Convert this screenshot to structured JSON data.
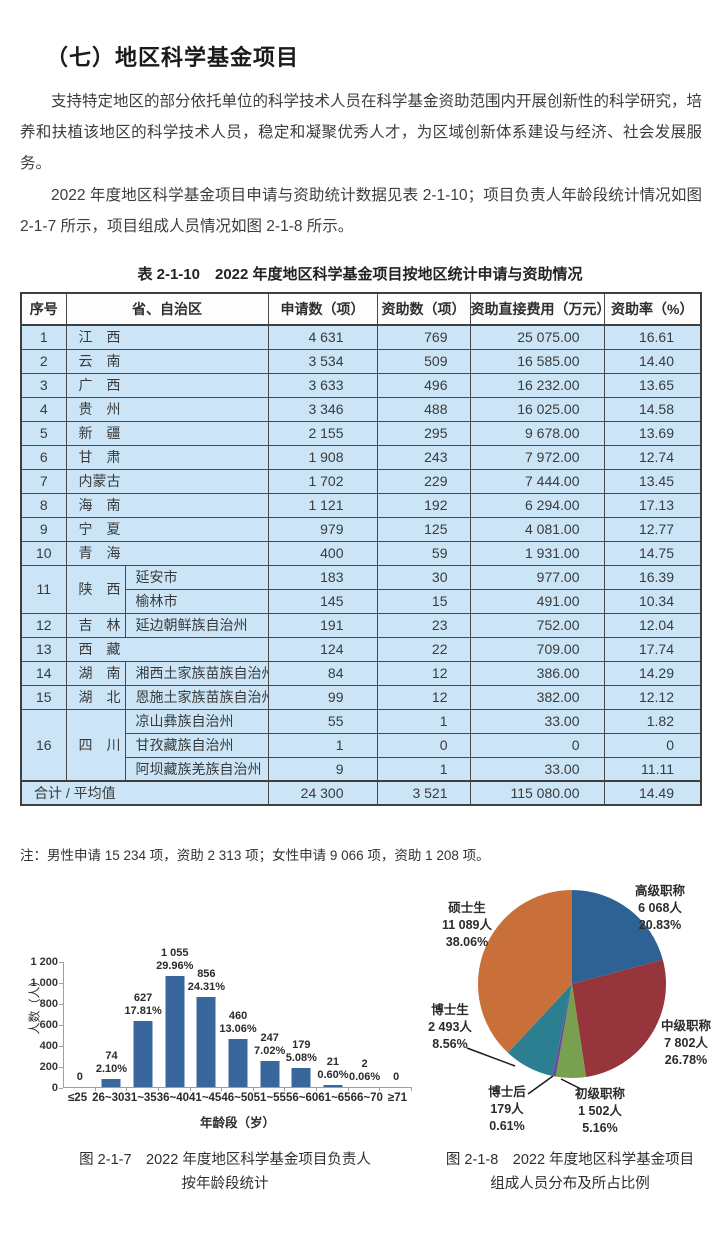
{
  "page": {
    "heading": "（七）地区科学基金项目",
    "paragraph1": "支持特定地区的部分依托单位的科学技术人员在科学基金资助范围内开展创新性的科学研究，培养和扶植该地区的科学技术人员，稳定和凝聚优秀人才，为区域创新体系建设与经济、社会发展服务。",
    "paragraph2": "2022 年度地区科学基金项目申请与资助统计数据见表 2-1-10；项目负责人年龄段统计情况如图 2-1-7 所示，项目组成人员情况如图 2-1-8 所示。",
    "note": "注：男性申请 15 234 项，资助 2 313 项；女性申请 9 066 项，资助 1 208 项。"
  },
  "table": {
    "title": "表 2-1-10　2022 年度地区科学基金项目按地区统计申请与资助情况",
    "headers": [
      "序号",
      "省、自治区",
      "申请数（项）",
      "资助数（项）",
      "资助直接费用（万元）",
      "资助率（%）"
    ],
    "rows": [
      {
        "no": "1",
        "province": "江　西",
        "values": [
          "4 631",
          "769",
          "25 075.00",
          "16.61"
        ]
      },
      {
        "no": "2",
        "province": "云　南",
        "values": [
          "3 534",
          "509",
          "16 585.00",
          "14.40"
        ]
      },
      {
        "no": "3",
        "province": "广　西",
        "values": [
          "3 633",
          "496",
          "16 232.00",
          "13.65"
        ]
      },
      {
        "no": "4",
        "province": "贵　州",
        "values": [
          "3 346",
          "488",
          "16 025.00",
          "14.58"
        ]
      },
      {
        "no": "5",
        "province": "新　疆",
        "values": [
          "2 155",
          "295",
          "9 678.00",
          "13.69"
        ]
      },
      {
        "no": "6",
        "province": "甘　肃",
        "values": [
          "1 908",
          "243",
          "7 972.00",
          "12.74"
        ]
      },
      {
        "no": "7",
        "province": "内蒙古",
        "values": [
          "1 702",
          "229",
          "7 444.00",
          "13.45"
        ]
      },
      {
        "no": "8",
        "province": "海　南",
        "values": [
          "1 121",
          "192",
          "6 294.00",
          "17.13"
        ]
      },
      {
        "no": "9",
        "province": "宁　夏",
        "values": [
          "979",
          "125",
          "4 081.00",
          "12.77"
        ]
      },
      {
        "no": "10",
        "province": "青　海",
        "values": [
          "400",
          "59",
          "1 931.00",
          "14.75"
        ]
      },
      {
        "no": "11",
        "province": "陕　西",
        "regions": [
          {
            "name": "延安市",
            "values": [
              "183",
              "30",
              "977.00",
              "16.39"
            ]
          },
          {
            "name": "榆林市",
            "values": [
              "145",
              "15",
              "491.00",
              "10.34"
            ]
          }
        ]
      },
      {
        "no": "12",
        "province": "吉　林",
        "region": "延边朝鲜族自治州",
        "values": [
          "191",
          "23",
          "752.00",
          "12.04"
        ]
      },
      {
        "no": "13",
        "province": "西　藏",
        "values": [
          "124",
          "22",
          "709.00",
          "17.74"
        ]
      },
      {
        "no": "14",
        "province": "湖　南",
        "region": "湘西土家族苗族自治州",
        "values": [
          "84",
          "12",
          "386.00",
          "14.29"
        ]
      },
      {
        "no": "15",
        "province": "湖　北",
        "region": "恩施土家族苗族自治州",
        "values": [
          "99",
          "12",
          "382.00",
          "12.12"
        ]
      },
      {
        "no": "16",
        "province": "四　川",
        "regions": [
          {
            "name": "凉山彝族自治州",
            "values": [
              "55",
              "1",
              "33.00",
              "1.82"
            ]
          },
          {
            "name": "甘孜藏族自治州",
            "values": [
              "1",
              "0",
              "0",
              "0"
            ]
          },
          {
            "name": "阿坝藏族羌族自治州",
            "values": [
              "9",
              "1",
              "33.00",
              "11.11"
            ]
          }
        ]
      }
    ],
    "total": {
      "label": "合计 / 平均值",
      "values": [
        "24 300",
        "3 521",
        "115 080.00",
        "14.49"
      ]
    },
    "colors": {
      "row_bg": "#cbe5f7",
      "border": "#4a4a4a"
    }
  },
  "chart_data": [
    {
      "type": "bar",
      "caption_lines": [
        "图 2-1-7　2022 年度地区科学基金项目负责人",
        "按年龄段统计"
      ],
      "ylabel": "人数（人）",
      "xlabel": "年龄段（岁）",
      "ymax": 1200,
      "yticks": [
        "0",
        "200",
        "400",
        "600",
        "800",
        "1 000",
        "1 200"
      ],
      "categories": [
        "≤25",
        "26~30",
        "31~35",
        "36~40",
        "41~45",
        "46~50",
        "51~55",
        "56~60",
        "61~65",
        "66~70",
        "≥71"
      ],
      "values": [
        0,
        74,
        627,
        1055,
        856,
        460,
        247,
        179,
        21,
        2,
        0
      ],
      "bar_labels": [
        [
          "0"
        ],
        [
          "74",
          "2.10%"
        ],
        [
          "627",
          "17.81%"
        ],
        [
          "1 055",
          "29.96%"
        ],
        [
          "856",
          "24.31%"
        ],
        [
          "460",
          "13.06%"
        ],
        [
          "247",
          "7.02%"
        ],
        [
          "179",
          "5.08%"
        ],
        [
          "21",
          "0.60%"
        ],
        [
          "2",
          "0.06%"
        ],
        [
          "0"
        ]
      ],
      "bar_color": "#39679b",
      "grid": false,
      "legend": "none"
    },
    {
      "type": "pie",
      "caption_lines": [
        "图 2-1-8　2022 年度地区科学基金项目",
        "组成人员分布及所占比例"
      ],
      "slices": [
        {
          "label": "高级职称",
          "count": "6 068人",
          "pct": "20.83%",
          "value": 20.83,
          "color": "#2e6194"
        },
        {
          "label": "中级职称",
          "count": "7 802人",
          "pct": "26.78%",
          "value": 26.78,
          "color": "#96353b"
        },
        {
          "label": "初级职称",
          "count": "1 502人",
          "pct": "5.16%",
          "value": 5.16,
          "color": "#79a04f"
        },
        {
          "label": "博士后",
          "count": "179人",
          "pct": "0.61%",
          "value": 0.61,
          "color": "#6a4c9c"
        },
        {
          "label": "博士生",
          "count": "2 493人",
          "pct": "8.56%",
          "value": 8.56,
          "color": "#2b7f91"
        },
        {
          "label": "硕士生",
          "count": "11 089人",
          "pct": "38.06%",
          "value": 38.06,
          "color": "#c9703a"
        }
      ]
    }
  ]
}
